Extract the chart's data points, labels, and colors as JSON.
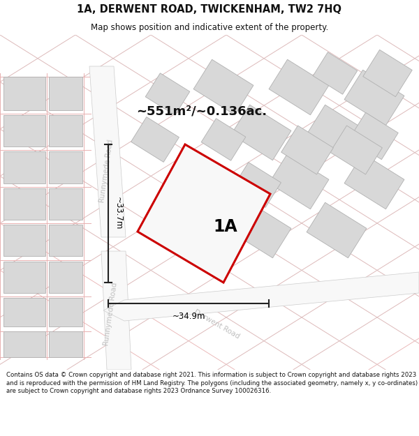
{
  "title": "1A, DERWENT ROAD, TWICKENHAM, TW2 7HQ",
  "subtitle": "Map shows position and indicative extent of the property.",
  "area_label": "~551m²/~0.136ac.",
  "property_label": "1A",
  "width_label": "~34.9m",
  "height_label": "~33.7m",
  "footer": "Contains OS data © Crown copyright and database right 2021. This information is subject to Crown copyright and database rights 2023 and is reproduced with the permission of HM Land Registry. The polygons (including the associated geometry, namely x, y co-ordinates) are subject to Crown copyright and database rights 2023 Ordnance Survey 100026316.",
  "bg_color": "#f0f0f0",
  "map_bg": "#ffffff",
  "bldg_fill": "#d8d8d8",
  "bldg_ec": "#b0b0b0",
  "property_stroke": "#cc0000",
  "property_fill": "#f8f8f8",
  "dim_line_color": "#222222",
  "road_label_color": "#c0c0c0",
  "pink_line": "#e8b0b0",
  "gray_line": "#cccccc",
  "title_color": "#111111",
  "footer_color": "#111111",
  "area_label_color": "#111111",
  "road_fill": "#f8f8f8",
  "road_ec": "#cccccc"
}
